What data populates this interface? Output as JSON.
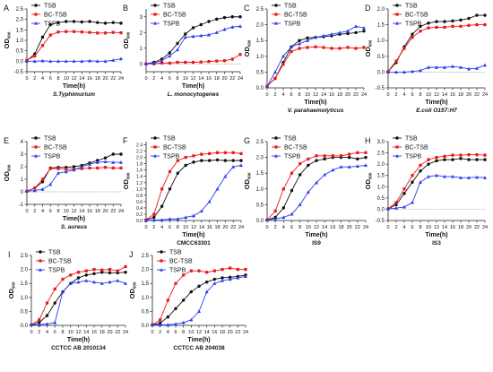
{
  "chart_data": [
    {
      "type": "line",
      "panel_letter": "A",
      "ylabel": "OD600",
      "xlabel": "Time(h)",
      "subtitle": "S.Typhimurium",
      "ylim": [
        -0.5,
        2.5
      ],
      "yticks": [
        -0.5,
        0.0,
        0.5,
        1.0,
        1.5,
        2.0,
        2.5
      ],
      "ytick_labels": [
        "-0.5",
        "0.0",
        "0.5",
        "1.0",
        "1.5",
        "2.0",
        "2.5"
      ],
      "x": [
        0,
        2,
        4,
        6,
        8,
        10,
        12,
        14,
        16,
        18,
        20,
        22,
        24
      ],
      "xtick_labels": [
        "0",
        "2",
        "4",
        "6",
        "8",
        "10",
        "12",
        "14",
        "16",
        "18",
        "20",
        "22",
        "24"
      ],
      "dotted_zero": true,
      "legend": [
        "TSB",
        "BC-TSB",
        "TSPB"
      ],
      "series": [
        {
          "name": "TSB",
          "values": [
            0.02,
            0.35,
            1.15,
            1.75,
            1.85,
            1.9,
            1.9,
            1.88,
            1.9,
            1.85,
            1.82,
            1.85,
            1.82
          ]
        },
        {
          "name": "BC-TSB",
          "values": [
            0.05,
            0.25,
            0.75,
            1.25,
            1.4,
            1.42,
            1.42,
            1.4,
            1.38,
            1.35,
            1.35,
            1.38,
            1.36
          ]
        },
        {
          "name": "TSPB",
          "values": [
            0.0,
            0.0,
            0.02,
            0.0,
            0.0,
            0.0,
            0.0,
            0.0,
            0.02,
            0.0,
            0.0,
            0.05,
            0.12
          ]
        }
      ]
    },
    {
      "type": "line",
      "panel_letter": "B",
      "ylabel": "OD600",
      "xlabel": "Time(h)",
      "subtitle": "L. monocytogenes",
      "ylim": [
        -0.5,
        3.5
      ],
      "yticks": [
        0,
        1,
        2,
        3
      ],
      "ytick_labels": [
        "0",
        "1",
        "2",
        "3"
      ],
      "x": [
        0,
        2,
        4,
        6,
        8,
        10,
        12,
        14,
        16,
        18,
        20,
        22,
        24
      ],
      "xtick_labels": [
        "0",
        "2",
        "4",
        "6",
        "8",
        "10",
        "12",
        "14",
        "16",
        "18",
        "20",
        "22",
        "24"
      ],
      "dotted_zero": true,
      "legend": [
        "TSB",
        "BC-TSB",
        "TSPB"
      ],
      "series": [
        {
          "name": "TSB",
          "values": [
            0.0,
            0.1,
            0.3,
            0.7,
            1.3,
            1.9,
            2.3,
            2.5,
            2.7,
            2.85,
            2.95,
            3.0,
            3.0
          ]
        },
        {
          "name": "BC-TSB",
          "values": [
            0.0,
            0.0,
            0.05,
            0.05,
            0.1,
            0.1,
            0.1,
            0.12,
            0.15,
            0.18,
            0.2,
            0.3,
            0.6
          ]
        },
        {
          "name": "TSPB",
          "values": [
            0.0,
            0.05,
            0.2,
            0.5,
            0.9,
            1.7,
            1.75,
            1.8,
            1.85,
            2.0,
            2.2,
            2.35,
            2.4
          ]
        }
      ]
    },
    {
      "type": "line",
      "panel_letter": "C",
      "ylabel": "OD600",
      "xlabel": "Time(h)",
      "subtitle": "V. parahaemolyticus",
      "ylim": [
        0.0,
        2.5
      ],
      "yticks": [
        0.0,
        0.5,
        1.0,
        1.5,
        2.0,
        2.5
      ],
      "ytick_labels": [
        "0.0",
        "0.5",
        "1.0",
        "1.5",
        "2.0",
        "2.5"
      ],
      "x": [
        0,
        2,
        4,
        6,
        8,
        10,
        12,
        14,
        16,
        18,
        20,
        22,
        24
      ],
      "xtick_labels": [
        "0",
        "2",
        "4",
        "6",
        "8",
        "10",
        "12",
        "14",
        "16",
        "18",
        "20",
        "22",
        "24"
      ],
      "dotted_zero": false,
      "legend": [
        "TSB",
        "BC-TSB",
        "TSPB"
      ],
      "series": [
        {
          "name": "TSB",
          "values": [
            0.05,
            0.3,
            0.8,
            1.3,
            1.5,
            1.58,
            1.6,
            1.62,
            1.65,
            1.7,
            1.72,
            1.75,
            1.8
          ]
        },
        {
          "name": "BC-TSB",
          "values": [
            0.05,
            0.3,
            0.75,
            1.15,
            1.25,
            1.28,
            1.3,
            1.28,
            1.25,
            1.25,
            1.28,
            1.25,
            1.28
          ]
        },
        {
          "name": "TSPB",
          "values": [
            0.05,
            0.5,
            1.0,
            1.3,
            1.4,
            1.5,
            1.6,
            1.65,
            1.7,
            1.75,
            1.8,
            1.95,
            1.9
          ]
        }
      ]
    },
    {
      "type": "line",
      "panel_letter": "D",
      "ylabel": "OD600",
      "xlabel": "Time(h)",
      "subtitle": "E.coli O157:H7",
      "ylim": [
        -0.5,
        2.0
      ],
      "yticks": [
        -0.5,
        0.0,
        0.5,
        1.0,
        1.5,
        2.0
      ],
      "ytick_labels": [
        "-0.5",
        "0.0",
        "0.5",
        "1.0",
        "1.5",
        "2.0"
      ],
      "x": [
        0,
        2,
        4,
        6,
        8,
        10,
        12,
        14,
        16,
        18,
        20,
        22,
        24
      ],
      "xtick_labels": [
        "0",
        "2",
        "4",
        "6",
        "8",
        "10",
        "12",
        "14",
        "16",
        "18",
        "20",
        "22",
        "24"
      ],
      "dotted_zero": true,
      "legend": [
        "TSB",
        "BC-TSB",
        "TSPB"
      ],
      "series": [
        {
          "name": "TSB",
          "values": [
            0.02,
            0.3,
            0.8,
            1.2,
            1.45,
            1.55,
            1.6,
            1.6,
            1.62,
            1.65,
            1.7,
            1.8,
            1.8
          ]
        },
        {
          "name": "BC-TSB",
          "values": [
            0.02,
            0.35,
            0.75,
            1.1,
            1.3,
            1.4,
            1.42,
            1.42,
            1.45,
            1.45,
            1.48,
            1.5,
            1.5
          ]
        },
        {
          "name": "TSPB",
          "values": [
            0.0,
            0.0,
            0.0,
            0.02,
            0.05,
            0.15,
            0.15,
            0.15,
            0.18,
            0.15,
            0.1,
            0.12,
            0.22
          ]
        }
      ]
    },
    {
      "type": "line",
      "panel_letter": "E",
      "ylabel": "OD600",
      "xlabel": "Time(h)",
      "subtitle": "S. aureus",
      "ylim": [
        -1,
        4
      ],
      "yticks": [
        -1,
        0,
        1,
        2,
        3,
        4
      ],
      "ytick_labels": [
        "-1",
        "0",
        "1",
        "2",
        "3",
        "4"
      ],
      "x": [
        0,
        2,
        4,
        6,
        8,
        10,
        12,
        14,
        16,
        18,
        20,
        22,
        24
      ],
      "xtick_labels": [
        "0",
        "2",
        "4",
        "6",
        "8",
        "10",
        "12",
        "14",
        "16",
        "18",
        "20",
        "22",
        "24"
      ],
      "dotted_zero": true,
      "legend": [
        "TSB",
        "BC-TSB",
        "TSPB"
      ],
      "series": [
        {
          "name": "TSB",
          "values": [
            0.05,
            0.3,
            0.8,
            1.9,
            1.95,
            1.95,
            2.0,
            2.1,
            2.3,
            2.5,
            2.7,
            3.0,
            3.0
          ]
        },
        {
          "name": "BC-TSB",
          "values": [
            0.05,
            0.3,
            1.0,
            1.85,
            1.85,
            1.8,
            1.8,
            1.85,
            1.9,
            1.9,
            1.95,
            1.9,
            1.9
          ]
        },
        {
          "name": "TSPB",
          "values": [
            0.05,
            0.1,
            0.2,
            0.6,
            1.5,
            1.6,
            1.75,
            2.0,
            2.2,
            2.35,
            2.4,
            2.35,
            2.35
          ]
        }
      ]
    },
    {
      "type": "line",
      "panel_letter": "F",
      "ylabel": "OD600",
      "xlabel": "Time(h)",
      "subtitle": "CMCC63301",
      "ylim": [
        0.0,
        2.5
      ],
      "yticks": [
        0.0,
        0.2,
        0.4,
        0.6,
        0.8,
        1.0,
        1.2,
        1.4,
        1.6,
        1.8,
        2.0,
        2.2,
        2.4
      ],
      "ytick_labels": [
        "0.0",
        "0.2",
        "0.4",
        "0.6",
        "0.8",
        "1.0",
        "1.2",
        "1.4",
        "1.6",
        "1.8",
        "2.0",
        "2.2",
        "2.4"
      ],
      "x": [
        0,
        2,
        4,
        6,
        8,
        10,
        12,
        14,
        16,
        18,
        20,
        22,
        24
      ],
      "xtick_labels": [
        "0",
        "2",
        "4",
        "6",
        "8",
        "10",
        "12",
        "14",
        "16",
        "18",
        "20",
        "22",
        "24"
      ],
      "dotted_zero": false,
      "legend": [
        "TSB",
        "BC-TSB",
        "TSPB"
      ],
      "series": [
        {
          "name": "TSB",
          "values": [
            0.02,
            0.1,
            0.45,
            1.0,
            1.5,
            1.75,
            1.85,
            1.9,
            1.9,
            1.92,
            1.9,
            1.9,
            1.9
          ]
        },
        {
          "name": "BC-TSB",
          "values": [
            0.02,
            0.2,
            1.0,
            1.55,
            1.9,
            2.0,
            2.05,
            2.1,
            2.12,
            2.15,
            2.15,
            2.15,
            2.12
          ]
        },
        {
          "name": "TSPB",
          "values": [
            0.0,
            0.02,
            0.02,
            0.05,
            0.05,
            0.1,
            0.15,
            0.3,
            0.6,
            1.0,
            1.4,
            1.7,
            1.75
          ]
        }
      ]
    },
    {
      "type": "line",
      "panel_letter": "G",
      "ylabel": "OD600",
      "xlabel": "Time(h)",
      "subtitle": "IS9",
      "ylim": [
        0.0,
        2.5
      ],
      "yticks": [
        0.0,
        0.5,
        1.0,
        1.5,
        2.0,
        2.5
      ],
      "ytick_labels": [
        "0.0",
        "0.5",
        "1.0",
        "1.5",
        "2.0",
        "2.5"
      ],
      "x": [
        0,
        2,
        4,
        6,
        8,
        10,
        12,
        14,
        16,
        18,
        20,
        22,
        24
      ],
      "xtick_labels": [
        "0",
        "2",
        "4",
        "6",
        "8",
        "10",
        "12",
        "14",
        "16",
        "18",
        "20",
        "22",
        "24"
      ],
      "dotted_zero": false,
      "legend": [
        "TSB",
        "BC-TSB",
        "TSPB"
      ],
      "series": [
        {
          "name": "TSB",
          "values": [
            0.02,
            0.1,
            0.4,
            0.95,
            1.45,
            1.75,
            1.9,
            1.95,
            2.0,
            2.0,
            2.0,
            1.95,
            2.0
          ]
        },
        {
          "name": "BC-TSB",
          "values": [
            0.02,
            0.3,
            1.0,
            1.5,
            1.8,
            1.95,
            2.05,
            2.05,
            2.05,
            2.05,
            2.1,
            2.15,
            2.15
          ]
        },
        {
          "name": "TSPB",
          "values": [
            0.02,
            0.05,
            0.1,
            0.2,
            0.5,
            0.9,
            1.2,
            1.45,
            1.6,
            1.7,
            1.7,
            1.72,
            1.75
          ]
        }
      ]
    },
    {
      "type": "line",
      "panel_letter": "H",
      "ylabel": "OD600",
      "xlabel": "Time(h)",
      "subtitle": "IS3",
      "ylim": [
        -0.5,
        3.0
      ],
      "yticks": [
        -0.5,
        0.0,
        0.5,
        1.0,
        1.5,
        2.0,
        2.5,
        3.0
      ],
      "ytick_labels": [
        "-0.5",
        "0.0",
        "0.5",
        "1.0",
        "1.5",
        "2.0",
        "2.5",
        "3.0"
      ],
      "x": [
        0,
        2,
        4,
        6,
        8,
        10,
        12,
        14,
        16,
        18,
        20,
        22,
        24
      ],
      "xtick_labels": [
        "0",
        "2",
        "4",
        "6",
        "8",
        "10",
        "12",
        "14",
        "16",
        "18",
        "20",
        "22",
        "24"
      ],
      "dotted_zero": true,
      "legend": [
        "TSB",
        "BC-TSB",
        "TSPB"
      ],
      "series": [
        {
          "name": "TSB",
          "values": [
            0.02,
            0.2,
            0.7,
            1.2,
            1.7,
            2.0,
            2.15,
            2.2,
            2.2,
            2.25,
            2.2,
            2.2,
            2.2
          ]
        },
        {
          "name": "BC-TSB",
          "values": [
            0.02,
            0.3,
            0.9,
            1.5,
            1.95,
            2.2,
            2.3,
            2.35,
            2.4,
            2.4,
            2.42,
            2.42,
            2.4
          ]
        },
        {
          "name": "TSPB",
          "values": [
            0.02,
            0.05,
            0.1,
            0.3,
            1.2,
            1.45,
            1.5,
            1.45,
            1.45,
            1.4,
            1.4,
            1.42,
            1.4
          ]
        }
      ]
    },
    {
      "type": "line",
      "panel_letter": "I",
      "ylabel": "OD600",
      "xlabel": "Time(h)",
      "subtitle": "CCTCC AB 2010134",
      "ylim": [
        0.0,
        2.5
      ],
      "yticks": [
        0.0,
        0.5,
        1.0,
        1.5,
        2.0,
        2.5
      ],
      "ytick_labels": [
        "0.0",
        "0.5",
        "1.0",
        "1.5",
        "2.0",
        "2.5"
      ],
      "x": [
        0,
        2,
        4,
        6,
        8,
        10,
        12,
        14,
        16,
        18,
        20,
        22,
        24
      ],
      "xtick_labels": [
        "0",
        "2",
        "4",
        "6",
        "8",
        "10",
        "12",
        "14",
        "16",
        "18",
        "20",
        "22",
        "24"
      ],
      "dotted_zero": false,
      "legend": [
        "TSB",
        "BC-TSB",
        "TSPB"
      ],
      "series": [
        {
          "name": "TSB",
          "values": [
            0.02,
            0.1,
            0.35,
            0.8,
            1.2,
            1.5,
            1.7,
            1.8,
            1.85,
            1.9,
            1.88,
            1.88,
            1.9
          ]
        },
        {
          "name": "BC-TSB",
          "values": [
            0.02,
            0.2,
            0.8,
            1.3,
            1.65,
            1.8,
            1.9,
            1.95,
            2.0,
            1.98,
            2.0,
            1.95,
            2.1
          ]
        },
        {
          "name": "TSPB",
          "values": [
            0.02,
            0.02,
            0.05,
            0.1,
            1.2,
            1.5,
            1.55,
            1.6,
            1.55,
            1.5,
            1.55,
            1.6,
            1.5
          ]
        }
      ]
    },
    {
      "type": "line",
      "panel_letter": "J",
      "ylabel": "OD600",
      "xlabel": "Time(h)",
      "subtitle": "CCTCC AB 204038",
      "ylim": [
        0.0,
        2.5
      ],
      "yticks": [
        0.0,
        0.5,
        1.0,
        1.5,
        2.0,
        2.5
      ],
      "ytick_labels": [
        "0.0",
        "0.5",
        "1.0",
        "1.5",
        "2.0",
        "2.5"
      ],
      "x": [
        0,
        2,
        4,
        6,
        8,
        10,
        12,
        14,
        16,
        18,
        20,
        22,
        24
      ],
      "xtick_labels": [
        "0",
        "2",
        "4",
        "6",
        "8",
        "10",
        "12",
        "14",
        "16",
        "18",
        "20",
        "22",
        "24"
      ],
      "dotted_zero": false,
      "legend": [
        "TSB",
        "BC-TSB",
        "TSPB"
      ],
      "series": [
        {
          "name": "TSB",
          "values": [
            0.02,
            0.08,
            0.3,
            0.6,
            0.9,
            1.2,
            1.4,
            1.55,
            1.65,
            1.7,
            1.72,
            1.75,
            1.8
          ]
        },
        {
          "name": "BC-TSB",
          "values": [
            0.02,
            0.2,
            0.9,
            1.5,
            1.8,
            1.95,
            1.95,
            1.9,
            1.95,
            2.0,
            2.05,
            2.0,
            2.0
          ]
        },
        {
          "name": "TSPB",
          "values": [
            0.02,
            0.02,
            0.02,
            0.05,
            0.1,
            0.2,
            0.5,
            1.2,
            1.5,
            1.6,
            1.65,
            1.7,
            1.75
          ]
        }
      ]
    }
  ],
  "colors": {
    "TSB": "#111111",
    "BC-TSB": "#e8191b",
    "TSPB": "#2a3df0",
    "axis": "#222222",
    "zero_line": "#888888"
  }
}
